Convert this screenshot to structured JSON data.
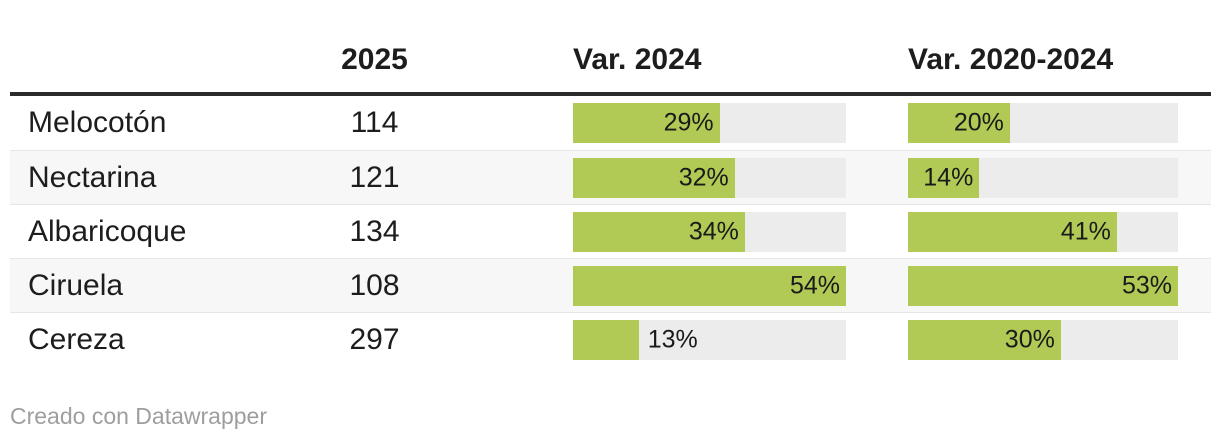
{
  "header": {
    "col_label": "",
    "col_2025": "2025",
    "col_var_2024": "Var. 2024",
    "col_var_2020_2024": "Var. 2020-2024"
  },
  "rows": [
    {
      "name": "Melocotón",
      "value_2025": "114",
      "var_2024": 29,
      "var_2020_2024": 20
    },
    {
      "name": "Nectarina",
      "value_2025": "121",
      "var_2024": 32,
      "var_2020_2024": 14
    },
    {
      "name": "Albaricoque",
      "value_2025": "134",
      "var_2024": 34,
      "var_2020_2024": 41
    },
    {
      "name": "Ciruela",
      "value_2025": "108",
      "var_2024": 54,
      "var_2020_2024": 53
    },
    {
      "name": "Cereza",
      "value_2025": "297",
      "var_2024": 13,
      "var_2020_2024": 30
    }
  ],
  "scales": {
    "var_2024_max": 54,
    "var_2020_2024_max": 53
  },
  "footer": {
    "credit": "Creado con Datawrapper"
  },
  "colors": {
    "bar_green": "#b0ca55",
    "bar_track": "#ececec",
    "row_stripe": "#f7f7f7",
    "header_rule": "#2b2b2b",
    "text": "#1d1d1d",
    "footer_text": "#9e9e9e",
    "row_border": "#e6e6e6"
  },
  "chart_data": {
    "type": "table",
    "title": "",
    "columns": [
      "",
      "2025",
      "Var. 2024",
      "Var. 2020-2024"
    ],
    "categories": [
      "Melocotón",
      "Nectarina",
      "Albaricoque",
      "Ciruela",
      "Cereza"
    ],
    "series": [
      {
        "name": "2025",
        "values": [
          114,
          121,
          134,
          108,
          297
        ]
      },
      {
        "name": "Var. 2024",
        "unit": "%",
        "values": [
          29,
          32,
          34,
          54,
          13
        ],
        "bar_scale_max": 54
      },
      {
        "name": "Var. 2020-2024",
        "unit": "%",
        "values": [
          20,
          14,
          41,
          53,
          30
        ],
        "bar_scale_max": 53
      }
    ],
    "notes": "Bar columns rendered as horizontal bars normalized to each column's maximum value; labels shown as percentages."
  }
}
